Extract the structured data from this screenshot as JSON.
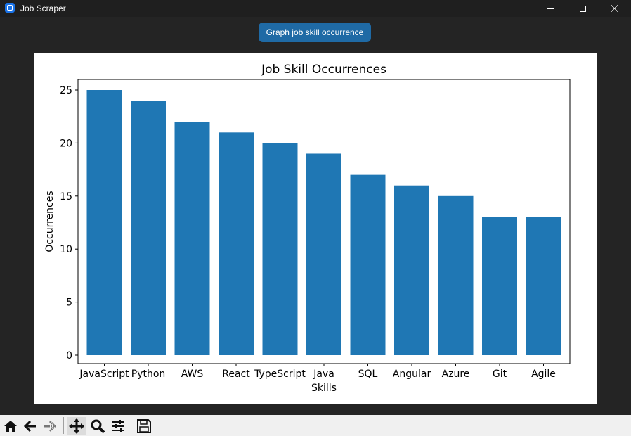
{
  "window": {
    "title": "Job Scraper",
    "controls": [
      "minimize",
      "maximize",
      "close"
    ]
  },
  "action_button": {
    "label": "Graph job skill occurrence",
    "color": "#1f6aa5"
  },
  "chart_data": {
    "type": "bar",
    "title": "Job Skill Occurrences",
    "xlabel": "Skills",
    "ylabel": "Occurrences",
    "categories": [
      "JavaScript",
      "Python",
      "AWS",
      "React",
      "TypeScript",
      "Java",
      "SQL",
      "Angular",
      "Azure",
      "Git",
      "Agile"
    ],
    "values": [
      25,
      24,
      22,
      21,
      20,
      19,
      17,
      16,
      15,
      13,
      13
    ],
    "ylim": [
      0,
      26
    ],
    "yticks": [
      0,
      5,
      10,
      15,
      20,
      25
    ],
    "bar_color": "#1f77b4",
    "grid": false,
    "legend": "none"
  },
  "toolbar": {
    "items": [
      {
        "icon": "home-icon",
        "action": "home"
      },
      {
        "icon": "arrow-left-icon",
        "action": "back"
      },
      {
        "icon": "arrow-right-icon",
        "action": "forward",
        "disabled": true
      },
      {
        "icon": "move-icon",
        "action": "pan",
        "active": true
      },
      {
        "icon": "zoom-icon",
        "action": "zoom"
      },
      {
        "icon": "sliders-icon",
        "action": "configure"
      },
      {
        "icon": "save-icon",
        "action": "save"
      }
    ]
  }
}
